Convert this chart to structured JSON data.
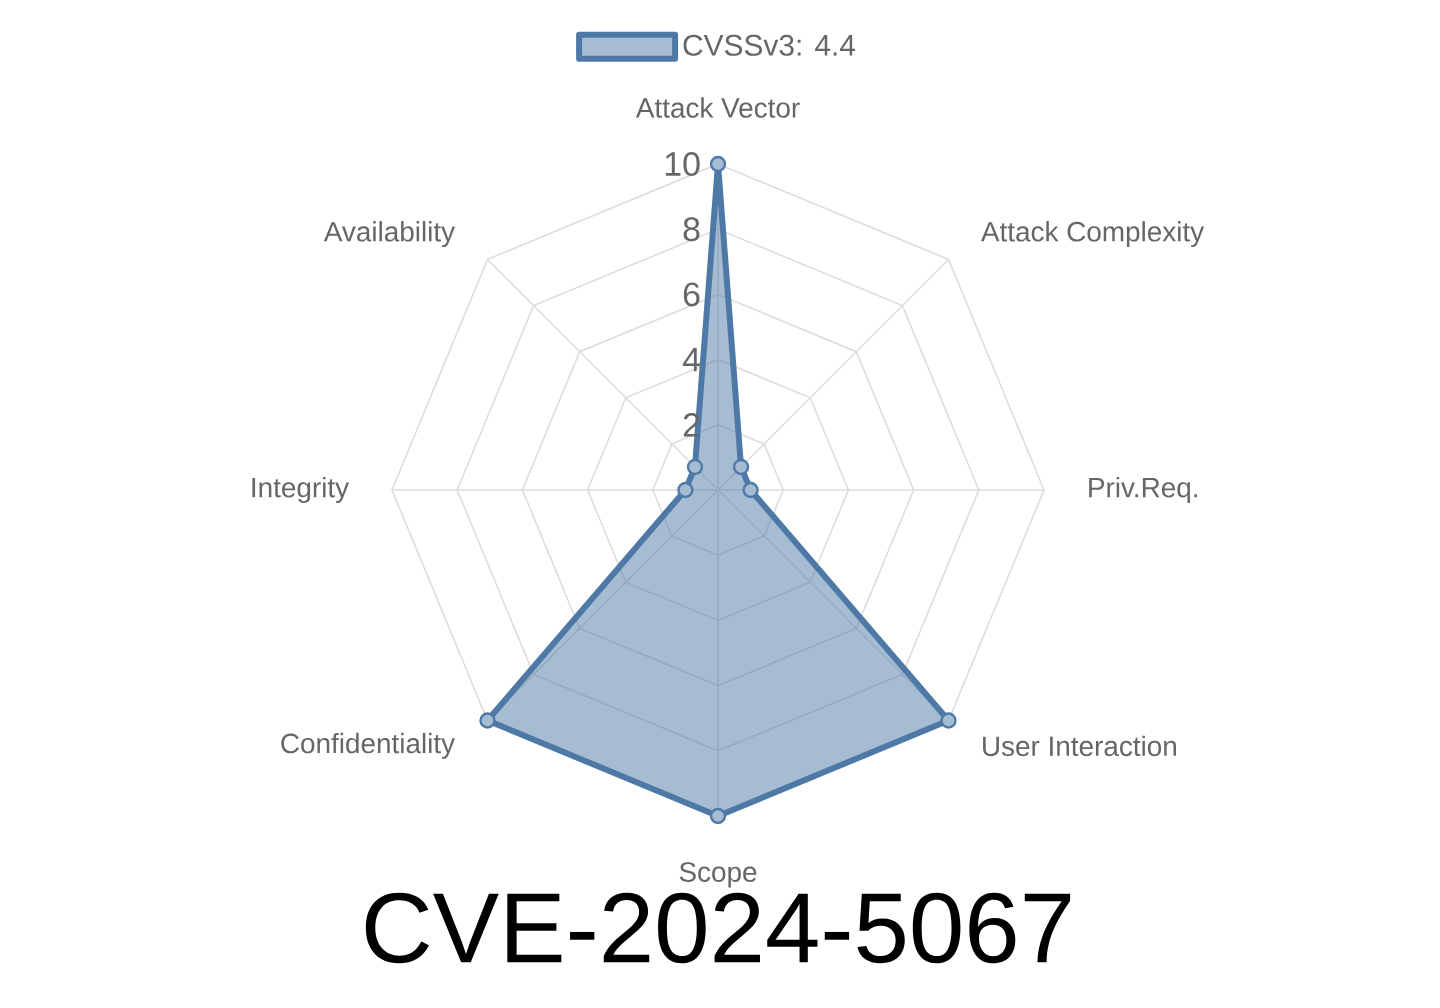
{
  "chart_data": {
    "type": "radar",
    "title": "CVE-2024-5067",
    "categories": [
      "Attack Vector",
      "Attack Complexity",
      "Priv.Req.",
      "User Interaction",
      "Scope",
      "Confidentiality",
      "Integrity",
      "Availability"
    ],
    "series": [
      {
        "name": "CVSSv3: 4.4",
        "color": "#4e79a7",
        "values": [
          10,
          1,
          1,
          10,
          10,
          10,
          1,
          1
        ]
      }
    ],
    "ylim": [
      0,
      10
    ],
    "yticks": [
      2,
      4,
      6,
      8,
      10
    ],
    "grid": true,
    "legend": "top",
    "marker": "circle"
  }
}
